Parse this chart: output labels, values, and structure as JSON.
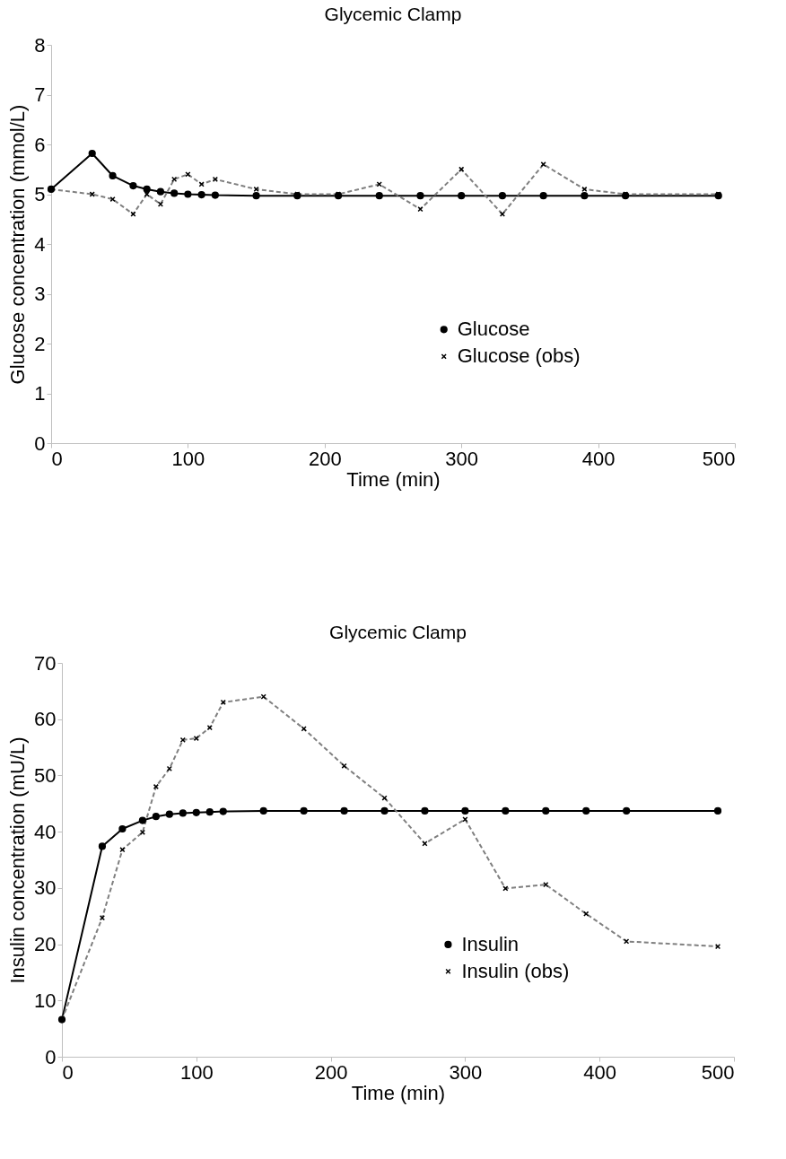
{
  "chart_data": [
    {
      "type": "line",
      "title": "Glycemic Clamp",
      "xlabel": "Time (min)",
      "ylabel": "Glucose concentration (mmol/L)",
      "xlim": [
        0,
        500
      ],
      "xticks": [
        0,
        100,
        200,
        300,
        400,
        500
      ],
      "ylim": [
        0,
        8
      ],
      "yticks": [
        0,
        1,
        2,
        3,
        4,
        5,
        6,
        7,
        8
      ],
      "grid": false,
      "legend": "bottom right",
      "series": [
        {
          "name": "Glucose",
          "color": "#000000",
          "marker": "circle",
          "line_style": "solid",
          "x": [
            0,
            30,
            45,
            60,
            70,
            80,
            90,
            100,
            110,
            120,
            150,
            180,
            210,
            240,
            270,
            300,
            330,
            360,
            390,
            420,
            488
          ],
          "values": [
            5.1,
            5.82,
            5.37,
            5.17,
            5.1,
            5.05,
            5.02,
            5.0,
            4.99,
            4.98,
            4.97,
            4.97,
            4.97,
            4.97,
            4.97,
            4.97,
            4.97,
            4.97,
            4.97,
            4.97,
            4.97
          ]
        },
        {
          "name": "Glucose (obs)",
          "color": "#7f7f7f",
          "marker": "cross",
          "line_style": "dashed",
          "x": [
            0,
            30,
            45,
            60,
            70,
            80,
            90,
            100,
            110,
            120,
            150,
            180,
            210,
            240,
            270,
            300,
            330,
            360,
            390,
            420,
            488
          ],
          "values": [
            5.1,
            5.0,
            4.9,
            4.6,
            5.0,
            4.8,
            5.3,
            5.4,
            5.2,
            5.3,
            5.1,
            5.0,
            5.0,
            5.2,
            4.7,
            5.5,
            4.6,
            5.6,
            5.1,
            5.0,
            5.0
          ]
        }
      ]
    },
    {
      "type": "line",
      "title": "Glycemic Clamp",
      "xlabel": "Time (min)",
      "ylabel": "Insulin concentration (mU/L)",
      "xlim": [
        0,
        500
      ],
      "xticks": [
        0,
        100,
        200,
        300,
        400,
        500
      ],
      "ylim": [
        0,
        70
      ],
      "yticks": [
        0,
        10,
        20,
        30,
        40,
        50,
        60,
        70
      ],
      "grid": false,
      "legend": "bottom right",
      "series": [
        {
          "name": "Insulin",
          "color": "#000000",
          "marker": "circle",
          "line_style": "solid",
          "x": [
            0,
            30,
            45,
            60,
            70,
            80,
            90,
            100,
            110,
            120,
            150,
            180,
            210,
            240,
            270,
            300,
            330,
            360,
            390,
            420,
            488
          ],
          "values": [
            6.6,
            37.4,
            40.5,
            42.0,
            42.7,
            43.1,
            43.3,
            43.4,
            43.5,
            43.6,
            43.7,
            43.7,
            43.7,
            43.7,
            43.7,
            43.7,
            43.7,
            43.7,
            43.7,
            43.7,
            43.7
          ]
        },
        {
          "name": "Insulin (obs)",
          "color": "#7f7f7f",
          "marker": "cross",
          "line_style": "dashed",
          "x": [
            0,
            30,
            45,
            60,
            70,
            80,
            90,
            100,
            110,
            120,
            150,
            180,
            210,
            240,
            270,
            300,
            330,
            360,
            390,
            420,
            488
          ],
          "values": [
            6.6,
            24.7,
            36.8,
            39.9,
            48.0,
            51.2,
            56.3,
            56.6,
            58.5,
            63.0,
            64.0,
            58.3,
            51.7,
            46.0,
            37.9,
            42.2,
            29.9,
            30.6,
            25.4,
            20.5,
            19.6
          ]
        }
      ]
    }
  ]
}
